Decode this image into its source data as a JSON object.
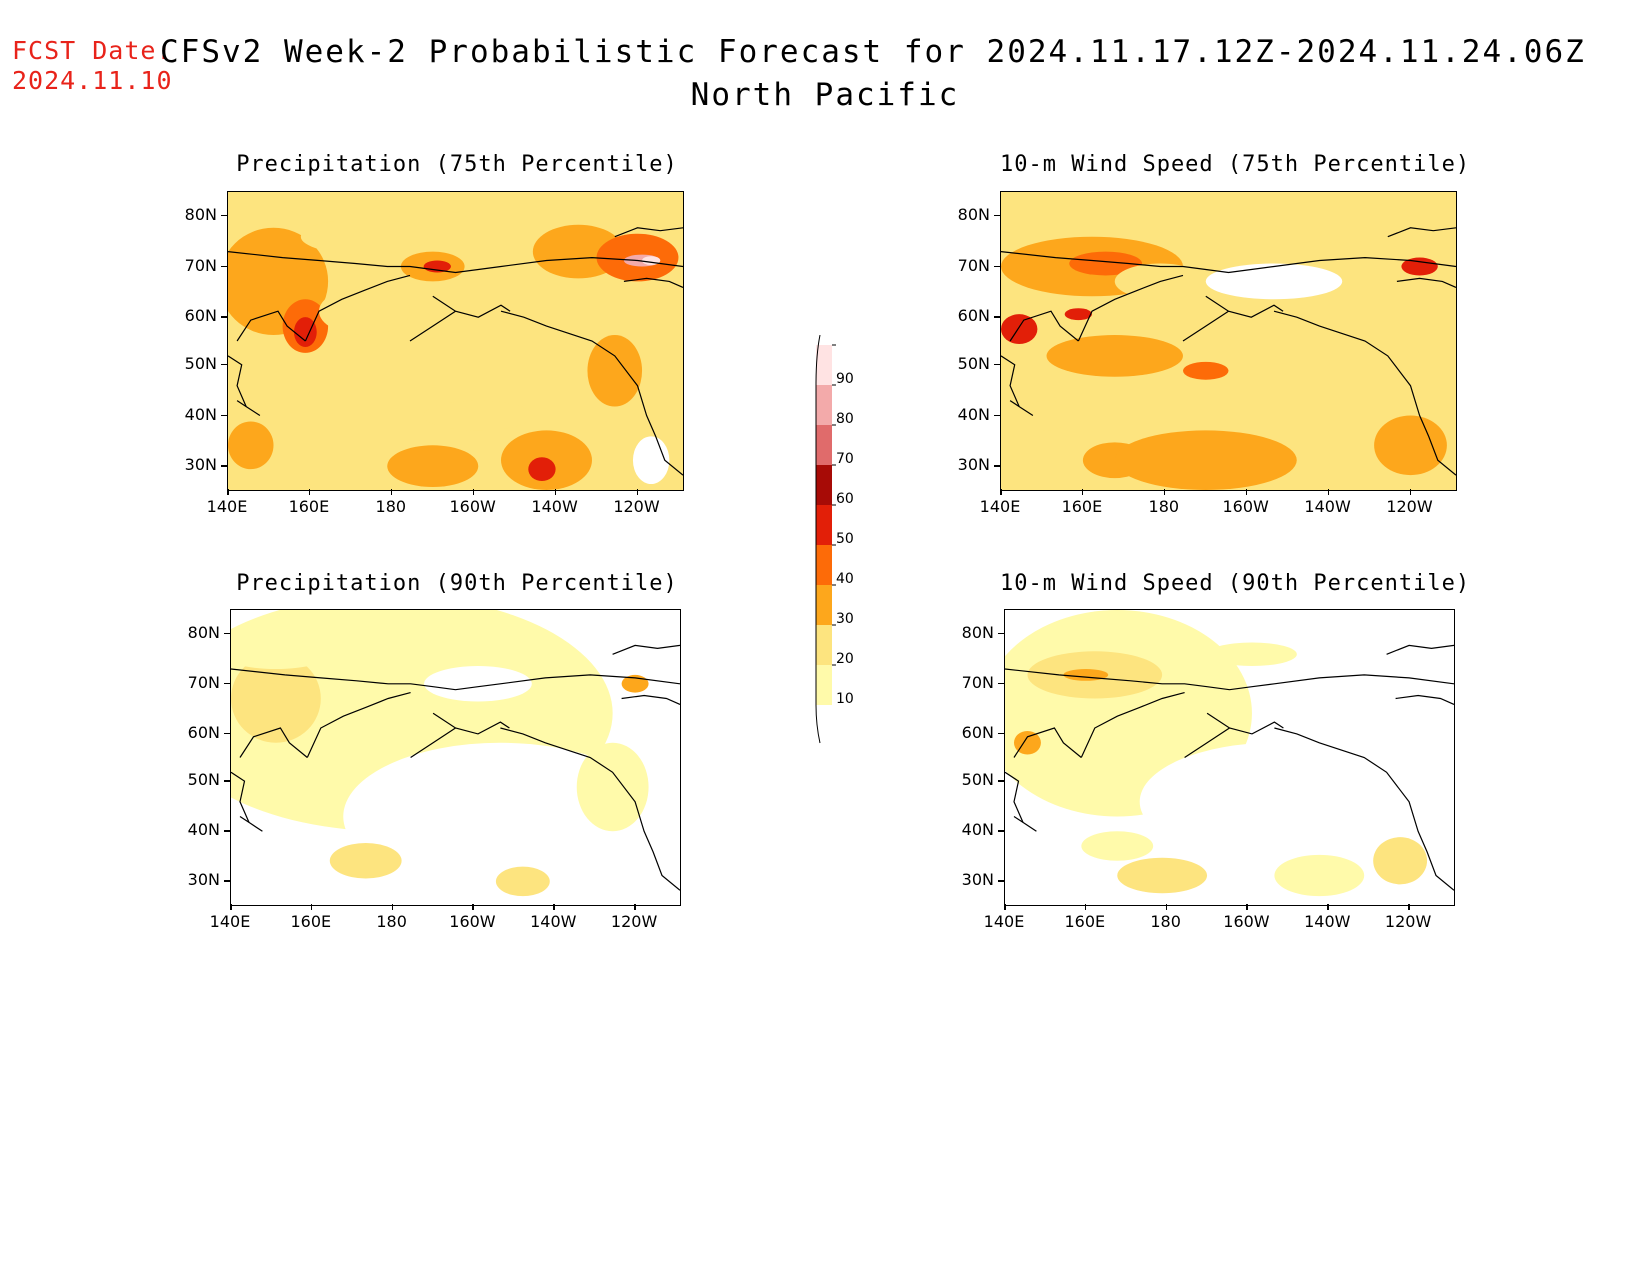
{
  "header": {
    "fcst_label": "FCST Date:",
    "fcst_date": "2024.11.10",
    "title": "CFSv2 Week-2 Probabilistic Forecast for 2024.11.17.12Z-2024.11.24.06Z",
    "subtitle": "North Pacific"
  },
  "colors": {
    "fcst": "#e8231a",
    "levels": [
      "#fffaaa",
      "#fde47f",
      "#fda71c",
      "#fd6b08",
      "#e21f08",
      "#a70b06",
      "#e06b6b",
      "#f3aaaa",
      "#ffe3e3"
    ]
  },
  "axes": {
    "lat_labels": [
      "80N",
      "70N",
      "60N",
      "50N",
      "40N",
      "30N"
    ],
    "lon_labels": [
      "140E",
      "160E",
      "180",
      "160W",
      "140W",
      "120W"
    ]
  },
  "panels": [
    {
      "id": "precip-75",
      "title": "Precipitation (75th Percentile)"
    },
    {
      "id": "wind-75",
      "title": "10-m Wind Speed (75th Percentile)"
    },
    {
      "id": "precip-90",
      "title": "Precipitation (90th Percentile)"
    },
    {
      "id": "wind-90",
      "title": "10-m Wind Speed (90th Percentile)"
    }
  ],
  "colorbar": {
    "levels": [
      "90",
      "80",
      "70",
      "60",
      "50",
      "40",
      "30",
      "20",
      "10"
    ]
  }
}
